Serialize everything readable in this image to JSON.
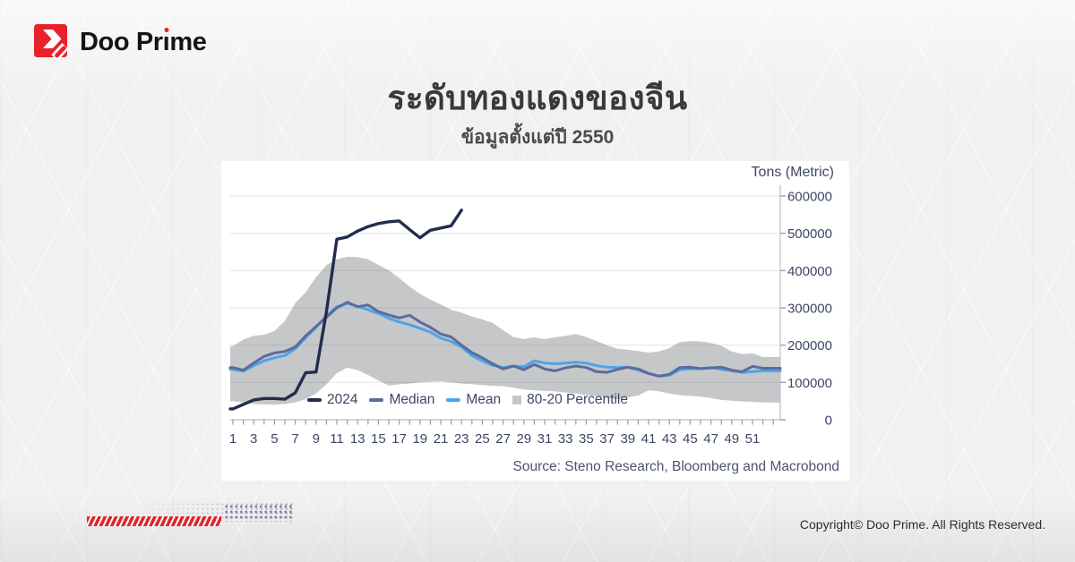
{
  "header": {
    "logo": {
      "name": "Doo Prime",
      "part1": "Doo Pr",
      "part2": "ı",
      "part3": "me",
      "brand_red": "#e8212d"
    }
  },
  "title": {
    "text": "ระดับทองแดงของจีน",
    "subtitle": "ข้อมูลตั้งแต่ปี 2550"
  },
  "chart": {
    "unit_label": "Tons (Metric)",
    "source": "Source: Steno Research, Bloomberg and Macrobond",
    "legend": [
      {
        "label": "2024",
        "color": "#222c4d",
        "type": "line"
      },
      {
        "label": "Median",
        "color": "#5b6b9c",
        "type": "line"
      },
      {
        "label": "Mean",
        "color": "#4ba4ea",
        "type": "line"
      },
      {
        "label": "80-20 Percentile",
        "color": "#c5c6c9",
        "type": "square"
      }
    ]
  },
  "chart_data": {
    "type": "line",
    "title": "ระดับทองแดงของจีน",
    "subtitle": "ข้อมูลตั้งแต่ปี 2550",
    "ylabel": "Tons (Metric)",
    "xlabel": "",
    "ylim": [
      0,
      600000
    ],
    "grid": "horizontal",
    "legend_position": "bottom-inside",
    "y_ticks": [
      0,
      100000,
      200000,
      300000,
      400000,
      500000,
      600000
    ],
    "x": [
      1,
      2,
      3,
      4,
      5,
      6,
      7,
      8,
      9,
      10,
      11,
      12,
      13,
      14,
      15,
      16,
      17,
      18,
      19,
      20,
      21,
      22,
      23,
      24,
      25,
      26,
      27,
      28,
      29,
      30,
      31,
      32,
      33,
      34,
      35,
      36,
      37,
      38,
      39,
      40,
      41,
      42,
      43,
      44,
      45,
      46,
      47,
      48,
      49,
      50,
      51,
      52
    ],
    "x_tick_labels": [
      1,
      3,
      5,
      7,
      9,
      11,
      13,
      15,
      17,
      19,
      21,
      23,
      25,
      27,
      29,
      31,
      33,
      35,
      37,
      39,
      41,
      43,
      45,
      47,
      49,
      51
    ],
    "series": [
      {
        "name": "2024",
        "color": "#222c4d",
        "values": [
          29000,
          41000,
          53000,
          57000,
          57000,
          55000,
          72000,
          126000,
          128000,
          290000,
          484000,
          490000,
          506000,
          518000,
          526000,
          531000,
          533000,
          510000,
          488000,
          508000,
          514000,
          520000,
          562000
        ]
      },
      {
        "name": "Median",
        "color": "#5b6b9c",
        "values": [
          140000,
          133000,
          152000,
          170000,
          179000,
          183000,
          195000,
          225000,
          250000,
          275000,
          300000,
          315000,
          303000,
          308000,
          290000,
          281000,
          273000,
          280000,
          262000,
          248000,
          230000,
          222000,
          200000,
          180000,
          166000,
          150000,
          136000,
          144000,
          134000,
          148000,
          136000,
          131000,
          139000,
          144000,
          140000,
          129000,
          127000,
          135000,
          141000,
          136000,
          124000,
          117000,
          122000,
          140000,
          141000,
          137000,
          139000,
          141000,
          133000,
          129000,
          143000,
          138000
        ]
      },
      {
        "name": "Mean",
        "color": "#4ba4ea",
        "values": [
          135000,
          130000,
          145000,
          158000,
          166000,
          172000,
          190000,
          220000,
          248000,
          278000,
          303000,
          312000,
          304000,
          295000,
          285000,
          272000,
          262000,
          255000,
          245000,
          235000,
          219000,
          210000,
          195000,
          172000,
          158000,
          146000,
          140000,
          144000,
          142000,
          158000,
          152000,
          150000,
          152000,
          154000,
          152000,
          145000,
          141000,
          140000,
          141000,
          133000,
          124000,
          117000,
          119000,
          134000,
          136000,
          137000,
          140000,
          135000,
          131000,
          127000,
          129000,
          131000
        ]
      }
    ],
    "band": {
      "name": "80-20 Percentile",
      "color": "#c6c7c9",
      "upper": [
        197000,
        215000,
        225000,
        228000,
        238000,
        265000,
        313000,
        342000,
        382000,
        415000,
        430000,
        437000,
        436000,
        430000,
        415000,
        401000,
        380000,
        357000,
        338000,
        322000,
        309000,
        295000,
        287000,
        277000,
        269000,
        260000,
        240000,
        222000,
        216000,
        221000,
        216000,
        221000,
        225000,
        230000,
        222000,
        211000,
        200000,
        190000,
        188000,
        184000,
        180000,
        183000,
        192000,
        208000,
        211000,
        210000,
        206000,
        198000,
        183000,
        176000,
        178000,
        168000
      ],
      "lower": [
        50000,
        46000,
        42000,
        41000,
        40000,
        42000,
        46000,
        55000,
        70000,
        95000,
        125000,
        140000,
        133000,
        120000,
        105000,
        92000,
        95000,
        97000,
        100000,
        102000,
        103000,
        100000,
        97000,
        95000,
        93000,
        91000,
        90000,
        86000,
        81000,
        79000,
        77000,
        76000,
        73000,
        70000,
        66000,
        63000,
        58000,
        55000,
        60000,
        65000,
        79000,
        76000,
        70000,
        66000,
        64000,
        62000,
        58000,
        53000,
        51000,
        49000,
        48000,
        46000
      ]
    }
  },
  "footer": {
    "copyright": "Copyright© Doo Prime. All Rights Reserved."
  }
}
